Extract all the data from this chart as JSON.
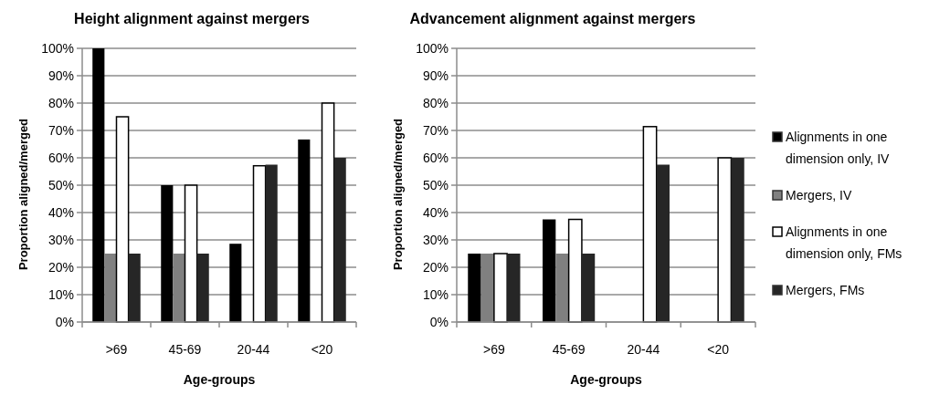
{
  "chart_data": [
    {
      "type": "bar",
      "title": "Height alignment against mergers",
      "xlabel": "Age-groups",
      "ylabel": "Proportion aligned/merged",
      "categories": [
        ">69",
        "45-69",
        "20-44",
        "<20"
      ],
      "ylim": [
        0,
        100
      ],
      "yticks": [
        {
          "value": 0,
          "label": "0%"
        },
        {
          "value": 10,
          "label": "10%"
        },
        {
          "value": 20,
          "label": "20%"
        },
        {
          "value": 30,
          "label": "30%"
        },
        {
          "value": 40,
          "label": "40%"
        },
        {
          "value": 50,
          "label": "50%"
        },
        {
          "value": 60,
          "label": "60%"
        },
        {
          "value": 70,
          "label": "70%"
        },
        {
          "value": 80,
          "label": "80%"
        },
        {
          "value": 90,
          "label": "90%"
        },
        {
          "value": 100,
          "label": "100%"
        }
      ],
      "grid": "y",
      "legend": false,
      "series": [
        {
          "color": "#000000",
          "values": [
            100,
            50,
            28.6,
            66.7
          ]
        },
        {
          "color": "#808080",
          "values": [
            25,
            25,
            0,
            0
          ]
        },
        {
          "color": "#ffffff",
          "values": [
            75,
            50,
            57.1,
            80
          ]
        },
        {
          "color": "#262626",
          "values": [
            25,
            25,
            57.5,
            60
          ]
        }
      ]
    },
    {
      "type": "bar",
      "title": "Advancement alignment against mergers",
      "xlabel": "Age-groups",
      "ylabel": "Proportion aligned/merged",
      "categories": [
        ">69",
        "45-69",
        "20-44",
        "<20"
      ],
      "ylim": [
        0,
        100
      ],
      "yticks": [
        {
          "value": 0,
          "label": "0%"
        },
        {
          "value": 10,
          "label": "10%"
        },
        {
          "value": 20,
          "label": "20%"
        },
        {
          "value": 30,
          "label": "30%"
        },
        {
          "value": 40,
          "label": "40%"
        },
        {
          "value": 50,
          "label": "50%"
        },
        {
          "value": 60,
          "label": "60%"
        },
        {
          "value": 70,
          "label": "70%"
        },
        {
          "value": 80,
          "label": "80%"
        },
        {
          "value": 90,
          "label": "90%"
        },
        {
          "value": 100,
          "label": "100%"
        }
      ],
      "grid": "y",
      "legend": "right",
      "series": [
        {
          "name": "Alignments in one dimension only, IV",
          "color": "#000000",
          "values": [
            25,
            37.5,
            0,
            0
          ]
        },
        {
          "name": "Mergers, IV",
          "color": "#808080",
          "values": [
            25,
            25,
            0,
            0
          ]
        },
        {
          "name": "Alignments in one dimension only, FMs",
          "color": "#ffffff",
          "values": [
            25,
            37.5,
            71.4,
            60
          ]
        },
        {
          "name": "Mergers, FMs",
          "color": "#262626",
          "values": [
            25,
            25,
            57.5,
            60
          ]
        }
      ]
    }
  ]
}
